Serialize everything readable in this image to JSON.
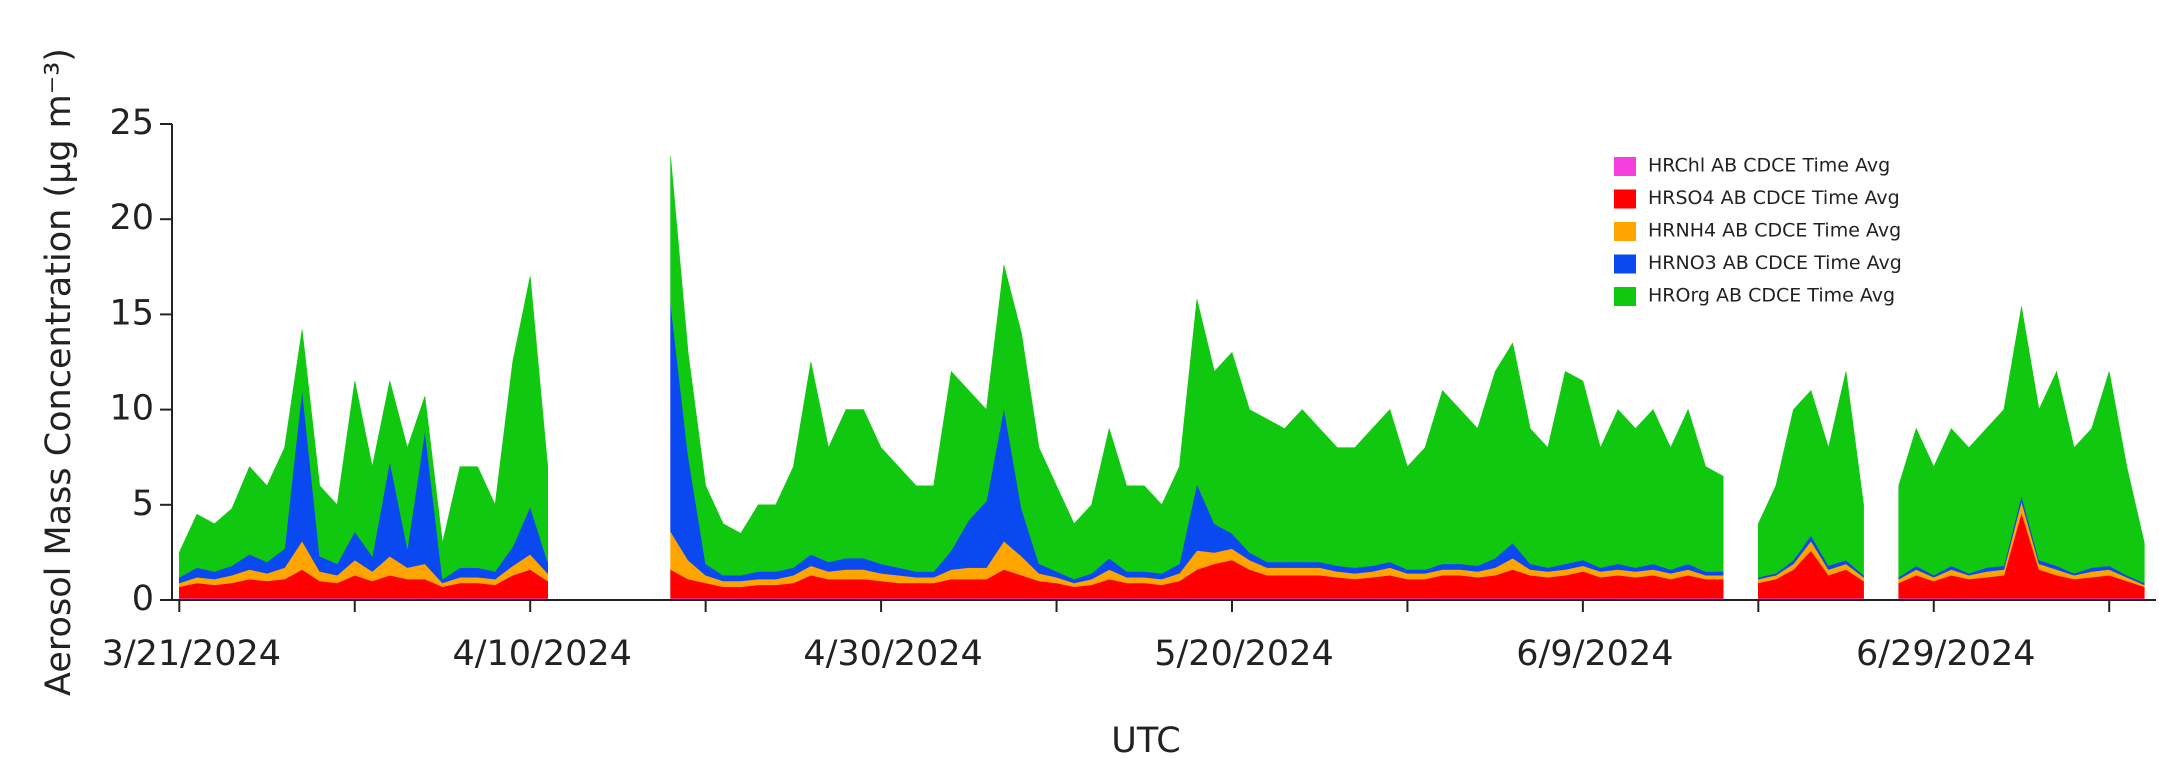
{
  "chart_data": {
    "type": "stacked_area",
    "xlabel": "UTC",
    "ylabel": "Aerosol Mass Concentration (µg m⁻³)",
    "legend": "upper right",
    "xlim": [
      "2024-03-20T14:00:00Z",
      "2024-07-11T16:00:00Z"
    ],
    "ylim": [
      0,
      25
    ],
    "yticks": [
      0,
      5,
      10,
      15,
      20,
      25
    ],
    "xticks": [
      {
        "value": "2024-03-21",
        "label": "3/21/2024"
      },
      {
        "value": "2024-03-31",
        "label": null
      },
      {
        "value": "2024-04-10",
        "label": "4/10/2024"
      },
      {
        "value": "2024-04-20",
        "label": null
      },
      {
        "value": "2024-04-30",
        "label": "4/30/2024"
      },
      {
        "value": "2024-05-10",
        "label": null
      },
      {
        "value": "2024-05-20",
        "label": "5/20/2024"
      },
      {
        "value": "2024-05-30",
        "label": null
      },
      {
        "value": "2024-06-09",
        "label": "6/9/2024"
      },
      {
        "value": "2024-06-19",
        "label": null
      },
      {
        "value": "2024-06-29",
        "label": "6/29/2024"
      },
      {
        "value": "2024-07-09",
        "label": null
      }
    ],
    "x": [
      "2024-03-21",
      "2024-03-22",
      "2024-03-23",
      "2024-03-24",
      "2024-03-25",
      "2024-03-26",
      "2024-03-27",
      "2024-03-28",
      "2024-03-29",
      "2024-03-30",
      "2024-03-31",
      "2024-04-01",
      "2024-04-02",
      "2024-04-03",
      "2024-04-04",
      "2024-04-05",
      "2024-04-06",
      "2024-04-07",
      "2024-04-08",
      "2024-04-09",
      "2024-04-10",
      "2024-04-11",
      "2024-04-12",
      "2024-04-13",
      "2024-04-14",
      "2024-04-15",
      "2024-04-16",
      "2024-04-17",
      "2024-04-18",
      "2024-04-19",
      "2024-04-20",
      "2024-04-21",
      "2024-04-22",
      "2024-04-23",
      "2024-04-24",
      "2024-04-25",
      "2024-04-26",
      "2024-04-27",
      "2024-04-28",
      "2024-04-29",
      "2024-04-30",
      "2024-05-01",
      "2024-05-02",
      "2024-05-03",
      "2024-05-04",
      "2024-05-05",
      "2024-05-06",
      "2024-05-07",
      "2024-05-08",
      "2024-05-09",
      "2024-05-10",
      "2024-05-11",
      "2024-05-12",
      "2024-05-13",
      "2024-05-14",
      "2024-05-15",
      "2024-05-16",
      "2024-05-17",
      "2024-05-18",
      "2024-05-19",
      "2024-05-20",
      "2024-05-21",
      "2024-05-22",
      "2024-05-23",
      "2024-05-24",
      "2024-05-25",
      "2024-05-26",
      "2024-05-27",
      "2024-05-28",
      "2024-05-29",
      "2024-05-30",
      "2024-05-31",
      "2024-06-01",
      "2024-06-02",
      "2024-06-03",
      "2024-06-04",
      "2024-06-05",
      "2024-06-06",
      "2024-06-07",
      "2024-06-08",
      "2024-06-09",
      "2024-06-10",
      "2024-06-11",
      "2024-06-12",
      "2024-06-13",
      "2024-06-14",
      "2024-06-15",
      "2024-06-16",
      "2024-06-17",
      "2024-06-18",
      "2024-06-19",
      "2024-06-20",
      "2024-06-21",
      "2024-06-22",
      "2024-06-23",
      "2024-06-24",
      "2024-06-25",
      "2024-06-26",
      "2024-06-27",
      "2024-06-28",
      "2024-06-29",
      "2024-06-30",
      "2024-07-01",
      "2024-07-02",
      "2024-07-03",
      "2024-07-04",
      "2024-07-05",
      "2024-07-06",
      "2024-07-07",
      "2024-07-08",
      "2024-07-09",
      "2024-07-10",
      "2024-07-11"
    ],
    "series": [
      {
        "name": "HRChl AB CDCE Time Avg",
        "color": "#f53fdc",
        "values": [
          0.1,
          0.1,
          0.1,
          0.1,
          0.1,
          0.1,
          0.1,
          0.1,
          0.1,
          0.1,
          0.1,
          0.1,
          0.1,
          0.1,
          0.1,
          0.1,
          0.1,
          0.1,
          0.1,
          0.1,
          0.1,
          0.1,
          null,
          null,
          null,
          null,
          null,
          null,
          0.1,
          0.1,
          0.1,
          0.1,
          0.1,
          0.1,
          0.1,
          0.1,
          0.1,
          0.1,
          0.1,
          0.1,
          0.1,
          0.1,
          0.1,
          0.1,
          0.1,
          0.1,
          0.1,
          0.1,
          0.1,
          0.1,
          0.1,
          0.1,
          0.1,
          0.1,
          0.1,
          0.1,
          0.1,
          0.1,
          0.1,
          0.1,
          0.1,
          0.1,
          0.1,
          0.1,
          0.1,
          0.1,
          0.1,
          0.1,
          0.1,
          0.1,
          0.1,
          0.1,
          0.1,
          0.1,
          0.1,
          0.1,
          0.1,
          0.1,
          0.1,
          0.1,
          0.1,
          0.1,
          0.1,
          0.1,
          0.1,
          0.1,
          0.1,
          0.1,
          0.1,
          null,
          0.1,
          0.1,
          0.1,
          0.1,
          0.1,
          0.1,
          0.1,
          null,
          0.1,
          0.1,
          0.1,
          0.1,
          0.1,
          0.1,
          0.1,
          0.1,
          0.1,
          0.1,
          0.1,
          0.1,
          0.1,
          0.1,
          0.1
        ]
      },
      {
        "name": "HRSO4 AB CDCE Time Avg",
        "color": "#ff0000",
        "values": [
          0.6,
          0.8,
          0.7,
          0.8,
          1.0,
          0.9,
          1.0,
          1.5,
          0.9,
          0.8,
          1.2,
          0.9,
          1.2,
          1.0,
          1.0,
          0.6,
          0.8,
          0.8,
          0.7,
          1.2,
          1.5,
          0.9,
          null,
          null,
          null,
          null,
          null,
          null,
          1.5,
          1.0,
          0.8,
          0.6,
          0.6,
          0.7,
          0.7,
          0.8,
          1.2,
          1.0,
          1.0,
          1.0,
          0.9,
          0.8,
          0.8,
          0.8,
          1.0,
          1.0,
          1.0,
          1.5,
          1.2,
          0.9,
          0.8,
          0.6,
          0.7,
          1.0,
          0.8,
          0.8,
          0.7,
          0.9,
          1.5,
          1.8,
          2.0,
          1.5,
          1.2,
          1.2,
          1.2,
          1.2,
          1.1,
          1.0,
          1.1,
          1.2,
          1.0,
          1.0,
          1.2,
          1.2,
          1.1,
          1.2,
          1.5,
          1.2,
          1.1,
          1.2,
          1.4,
          1.1,
          1.2,
          1.1,
          1.2,
          1.0,
          1.2,
          1.0,
          1.0,
          null,
          0.8,
          1.0,
          1.5,
          2.5,
          1.2,
          1.5,
          0.9,
          null,
          0.8,
          1.2,
          0.9,
          1.2,
          1.0,
          1.1,
          1.2,
          4.5,
          1.5,
          1.2,
          1.0,
          1.1,
          1.2,
          0.9,
          0.6
        ]
      },
      {
        "name": "HRNH4 AB CDCE Time Avg",
        "color": "#ffa500",
        "values": [
          0.2,
          0.3,
          0.3,
          0.4,
          0.5,
          0.4,
          0.6,
          1.5,
          0.5,
          0.4,
          0.8,
          0.5,
          1.0,
          0.6,
          0.8,
          0.2,
          0.3,
          0.3,
          0.3,
          0.5,
          0.8,
          0.4,
          null,
          null,
          null,
          null,
          null,
          null,
          2.0,
          1.0,
          0.4,
          0.3,
          0.3,
          0.3,
          0.3,
          0.4,
          0.5,
          0.4,
          0.5,
          0.5,
          0.4,
          0.4,
          0.3,
          0.3,
          0.5,
          0.6,
          0.6,
          1.5,
          1.0,
          0.4,
          0.3,
          0.2,
          0.3,
          0.5,
          0.3,
          0.3,
          0.3,
          0.4,
          1.0,
          0.6,
          0.6,
          0.5,
          0.4,
          0.4,
          0.4,
          0.4,
          0.3,
          0.3,
          0.3,
          0.4,
          0.3,
          0.3,
          0.3,
          0.3,
          0.3,
          0.4,
          0.6,
          0.3,
          0.3,
          0.3,
          0.3,
          0.3,
          0.3,
          0.3,
          0.3,
          0.3,
          0.3,
          0.2,
          0.2,
          null,
          0.2,
          0.2,
          0.3,
          0.5,
          0.3,
          0.3,
          0.2,
          null,
          0.2,
          0.3,
          0.2,
          0.3,
          0.2,
          0.3,
          0.3,
          0.6,
          0.3,
          0.3,
          0.2,
          0.3,
          0.3,
          0.2,
          0.1
        ]
      },
      {
        "name": "HRNO3 AB CDCE Time Avg",
        "color": "#0a48f0",
        "values": [
          0.3,
          0.5,
          0.4,
          0.5,
          0.8,
          0.6,
          1.0,
          8.0,
          0.8,
          0.6,
          1.5,
          0.8,
          5.0,
          1.0,
          7.0,
          0.2,
          0.5,
          0.5,
          0.4,
          1.0,
          2.5,
          0.6,
          null,
          null,
          null,
          null,
          null,
          null,
          12.0,
          5.5,
          0.6,
          0.3,
          0.3,
          0.4,
          0.4,
          0.4,
          0.6,
          0.5,
          0.6,
          0.6,
          0.5,
          0.4,
          0.3,
          0.3,
          1.0,
          2.5,
          3.5,
          7.0,
          2.5,
          0.5,
          0.3,
          0.2,
          0.3,
          0.6,
          0.3,
          0.3,
          0.3,
          0.5,
          3.5,
          1.5,
          0.8,
          0.4,
          0.3,
          0.3,
          0.3,
          0.3,
          0.3,
          0.3,
          0.3,
          0.3,
          0.2,
          0.2,
          0.3,
          0.3,
          0.3,
          0.5,
          0.8,
          0.3,
          0.2,
          0.3,
          0.3,
          0.2,
          0.3,
          0.2,
          0.3,
          0.2,
          0.3,
          0.2,
          0.2,
          null,
          0.1,
          0.1,
          0.2,
          0.3,
          0.2,
          0.2,
          0.1,
          null,
          0.1,
          0.2,
          0.1,
          0.2,
          0.1,
          0.2,
          0.2,
          0.3,
          0.2,
          0.2,
          0.1,
          0.2,
          0.2,
          0.1,
          0.1
        ]
      },
      {
        "name": "HROrg AB CDCE Time Avg",
        "color": "#11c811",
        "values": [
          1.3,
          2.8,
          2.5,
          3.0,
          4.6,
          4.0,
          5.3,
          3.1,
          3.7,
          3.1,
          7.9,
          4.7,
          4.2,
          5.3,
          1.8,
          1.9,
          5.3,
          5.3,
          3.5,
          9.7,
          12.1,
          5.0,
          null,
          null,
          null,
          null,
          null,
          null,
          7.7,
          5.4,
          4.1,
          2.7,
          2.2,
          3.5,
          3.5,
          5.3,
          10.1,
          6.0,
          7.8,
          7.8,
          6.1,
          5.3,
          4.5,
          4.5,
          9.4,
          6.8,
          4.8,
          7.5,
          9.2,
          6.1,
          4.5,
          2.9,
          3.6,
          6.8,
          4.5,
          4.5,
          3.6,
          5.1,
          9.7,
          8.0,
          9.5,
          7.5,
          7.5,
          7.0,
          8.0,
          7.0,
          6.2,
          6.3,
          7.2,
          8.0,
          5.4,
          6.4,
          9.1,
          8.1,
          7.2,
          9.8,
          10.5,
          7.1,
          6.3,
          10.1,
          9.4,
          6.3,
          8.1,
          7.3,
          8.1,
          6.4,
          8.1,
          5.5,
          5.0,
          null,
          2.8,
          4.6,
          7.9,
          7.6,
          6.2,
          9.9,
          3.7,
          null,
          4.8,
          7.2,
          5.7,
          7.2,
          6.6,
          7.3,
          8.2,
          9.9,
          7.9,
          10.2,
          6.6,
          7.3,
          10.2,
          5.7,
          2.1
        ]
      }
    ]
  }
}
